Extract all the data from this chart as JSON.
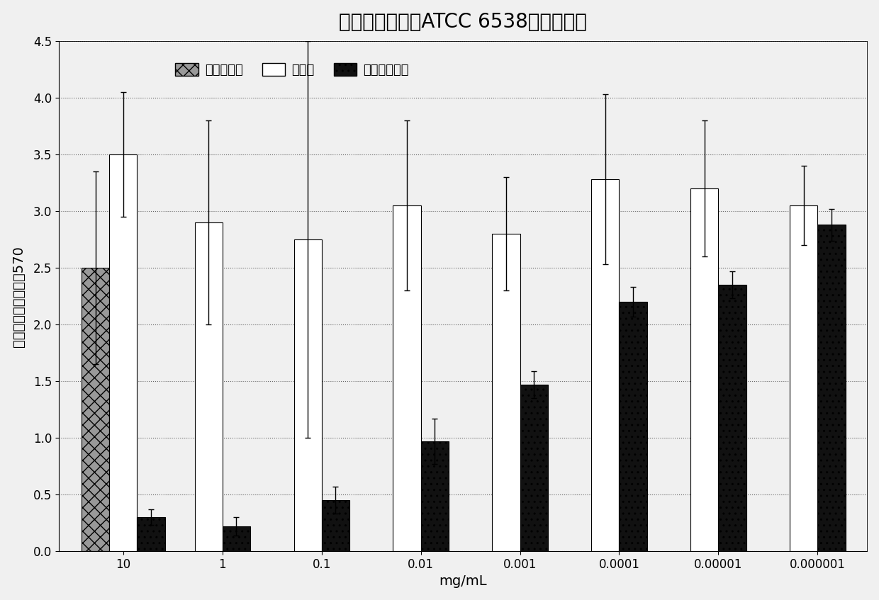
{
  "title": "金黄色葡萄球菌ATCC 6538生物膜去除",
  "xlabel": "mg/mL",
  "ylabel": "剩余的生物膜吸光度570",
  "categories": [
    "10",
    "1",
    "0.1",
    "0.01",
    "0.001",
    "0.0001",
    "0.00001",
    "0.000001"
  ],
  "biofilm_control_val": 2.5,
  "biofilm_control_err": 0.85,
  "collagenase": [
    3.5,
    2.9,
    2.75,
    3.05,
    2.8,
    3.28,
    3.2,
    3.05
  ],
  "collagenase_err": [
    0.55,
    0.9,
    1.75,
    0.75,
    0.5,
    0.75,
    0.6,
    0.35
  ],
  "thermolysin": [
    0.3,
    0.22,
    0.45,
    0.97,
    1.47,
    2.2,
    2.35,
    2.88
  ],
  "thermolysin_err": [
    0.07,
    0.08,
    0.12,
    0.2,
    0.12,
    0.13,
    0.12,
    0.14
  ],
  "ylim": [
    0,
    4.5
  ],
  "yticks": [
    0,
    0.5,
    1,
    1.5,
    2,
    2.5,
    3,
    3.5,
    4,
    4.5
  ],
  "legend_labels": [
    "生物膜对照",
    "胶原酶",
    "嗜热菌蛋白酶"
  ],
  "bar_width": 0.28,
  "title_fontsize": 20,
  "label_fontsize": 14,
  "tick_fontsize": 12,
  "legend_fontsize": 13,
  "collagenase_color": "#ffffff",
  "thermolysin_color": "#111111",
  "biofilm_hatch_color": "#999999",
  "figure_background": "#f0f0f0",
  "plot_background": "#f0f0f0"
}
